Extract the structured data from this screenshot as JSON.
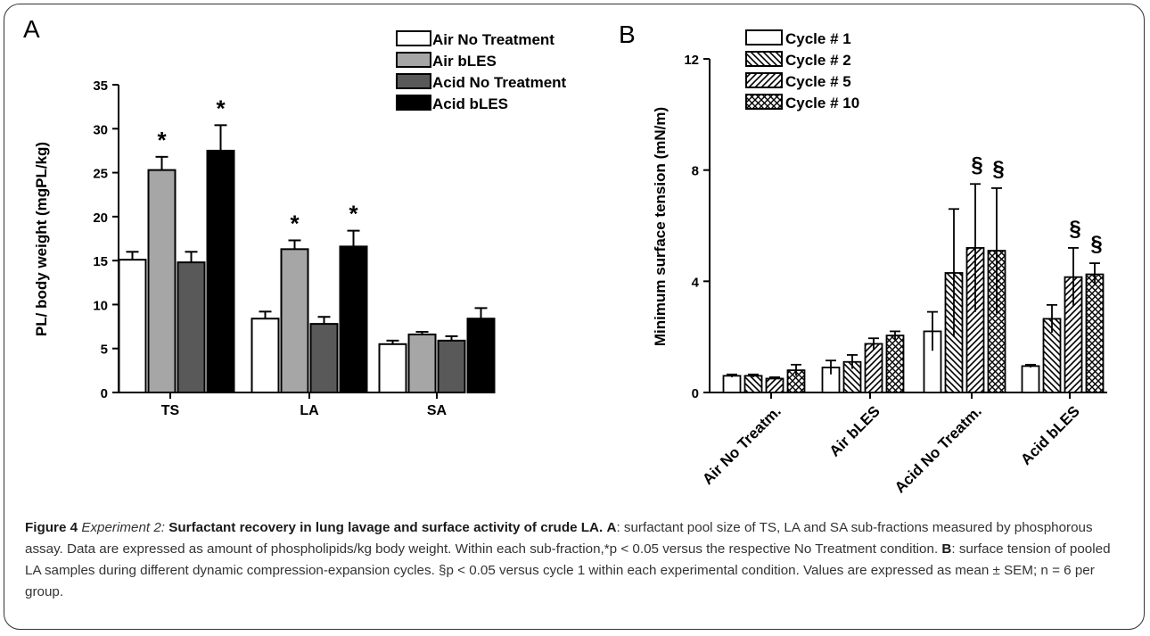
{
  "chart_data": [
    {
      "panel": "A",
      "type": "bar",
      "ylabel": "PL/ body weight (mgPL/kg)",
      "ylim": [
        0,
        35
      ],
      "yticks": [
        0,
        5,
        10,
        15,
        20,
        25,
        30,
        35
      ],
      "categories": [
        "TS",
        "LA",
        "SA"
      ],
      "legend_position": "top-right",
      "series": [
        {
          "name": "Air No Treatment",
          "fill": "#ffffff",
          "values": [
            15.1,
            8.4,
            5.5
          ],
          "errors": [
            0.9,
            0.8,
            0.4
          ],
          "marks": [
            "",
            "",
            ""
          ]
        },
        {
          "name": "Air bLES",
          "fill": "#a6a6a6",
          "values": [
            25.3,
            16.3,
            6.6
          ],
          "errors": [
            1.5,
            1.0,
            0.3
          ],
          "marks": [
            "*",
            "*",
            ""
          ]
        },
        {
          "name": "Acid No Treatment",
          "fill": "#595959",
          "values": [
            14.8,
            7.8,
            5.9
          ],
          "errors": [
            1.2,
            0.8,
            0.5
          ],
          "marks": [
            "",
            "",
            ""
          ]
        },
        {
          "name": "Acid bLES",
          "fill": "#000000",
          "values": [
            27.5,
            16.6,
            8.4
          ],
          "errors": [
            2.9,
            1.8,
            1.2
          ],
          "marks": [
            "*",
            "*",
            ""
          ]
        }
      ]
    },
    {
      "panel": "B",
      "type": "bar",
      "ylabel": "Minimum surface tension (mN/m)",
      "ylim": [
        0,
        12
      ],
      "yticks": [
        0,
        4,
        8,
        12
      ],
      "categories": [
        "Air No Treatm.",
        "Air bLES",
        "Acid No Treatm.",
        "Acid bLES"
      ],
      "legend_position": "top-left",
      "series": [
        {
          "name": "Cycle # 1",
          "pattern": "none",
          "values": [
            0.6,
            0.9,
            2.2,
            0.95
          ],
          "errors": [
            0.05,
            0.25,
            0.7,
            0.05
          ],
          "marks": [
            "",
            "",
            "",
            ""
          ]
        },
        {
          "name": "Cycle # 2",
          "pattern": "backslash",
          "values": [
            0.6,
            1.1,
            4.3,
            2.65
          ],
          "errors": [
            0.05,
            0.25,
            2.3,
            0.5
          ],
          "marks": [
            "",
            "",
            "",
            ""
          ]
        },
        {
          "name": "Cycle # 5",
          "pattern": "slash",
          "values": [
            0.5,
            1.75,
            5.2,
            4.15
          ],
          "errors": [
            0.05,
            0.2,
            2.3,
            1.05
          ],
          "marks": [
            "",
            "",
            "§",
            "§"
          ]
        },
        {
          "name": "Cycle # 10",
          "pattern": "cross",
          "values": [
            0.8,
            2.05,
            5.1,
            4.25
          ],
          "errors": [
            0.2,
            0.15,
            2.25,
            0.4
          ],
          "marks": [
            "",
            "",
            "§",
            "§"
          ]
        }
      ]
    }
  ],
  "caption": {
    "label": "Figure 4",
    "experiment": "Experiment 2:",
    "title": "Surfactant recovery in lung lavage and surface activity of crude LA.",
    "a_key": "A",
    "a_text": ": surfactant pool size of TS, LA and SA sub-fractions measured by phosphorous assay. Data are expressed as amount of phospholipids/kg body weight. Within each sub-fraction,*p < 0.05 versus the respective No Treatment condition.",
    "b_key": "B",
    "b_text": ": surface tension of pooled LA samples during different dynamic compression-expansion cycles. §p < 0.05 versus cycle 1 within each experimental condition. Values are expressed as mean ± SEM; n = 6 per group."
  }
}
